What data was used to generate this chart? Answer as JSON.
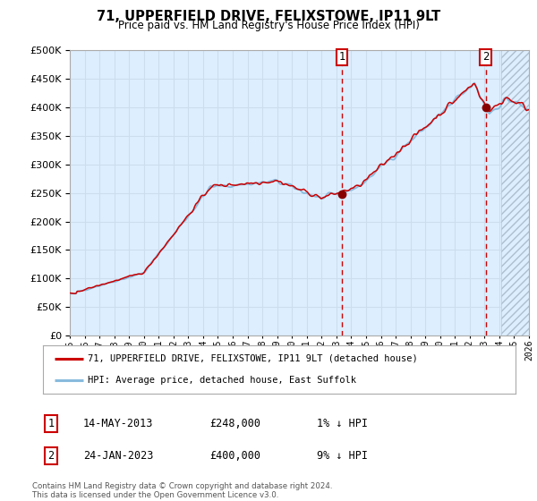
{
  "title": "71, UPPERFIELD DRIVE, FELIXSTOWE, IP11 9LT",
  "subtitle": "Price paid vs. HM Land Registry's House Price Index (HPI)",
  "legend_line1": "71, UPPERFIELD DRIVE, FELIXSTOWE, IP11 9LT (detached house)",
  "legend_line2": "HPI: Average price, detached house, East Suffolk",
  "note1_date": "14-MAY-2013",
  "note1_price": "£248,000",
  "note1_hpi": "1% ↓ HPI",
  "note2_date": "24-JAN-2023",
  "note2_price": "£400,000",
  "note2_hpi": "9% ↓ HPI",
  "footer": "Contains HM Land Registry data © Crown copyright and database right 2024.\nThis data is licensed under the Open Government Licence v3.0.",
  "sale1_year": 2013.37,
  "sale1_value": 248000,
  "sale2_year": 2023.07,
  "sale2_value": 400000,
  "ylim": [
    0,
    500000
  ],
  "xlim": [
    1995,
    2026
  ],
  "background_color": "#ffffff",
  "plot_bg_color": "#ddeeff",
  "hatch_color": "#aabbcc",
  "grid_color": "#ccddee",
  "hpi_line_color": "#88bbdd",
  "price_line_color": "#cc0000",
  "sale_dot_color": "#880000",
  "vline_color": "#cc0000",
  "title_color": "#000000",
  "note_box_color": "#cc0000",
  "legend_border_color": "#aaaaaa",
  "spine_color": "#aaaaaa"
}
